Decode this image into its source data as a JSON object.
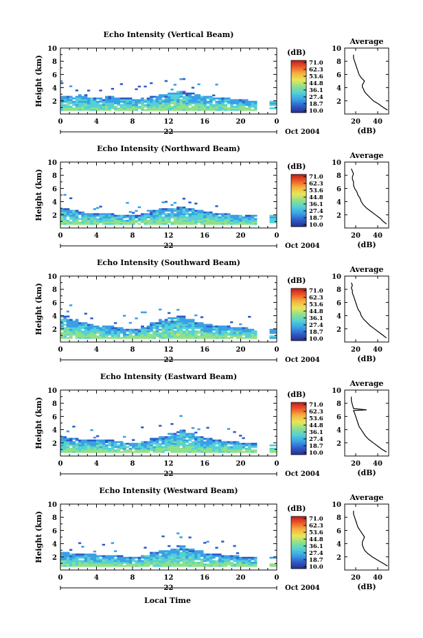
{
  "figure": {
    "xlabel": "Local Time",
    "colorbar_unit": "(dB)",
    "colorbar_ticks": [
      "71.0",
      "62.3",
      "53.6",
      "44.8",
      "36.1",
      "27.4",
      "18.7",
      "10.0"
    ],
    "colormap": [
      "#2a2f8f",
      "#2e5cc8",
      "#3aa0e6",
      "#52d1d6",
      "#8fe08a",
      "#e9e65a",
      "#f6b23c",
      "#ec5a2a",
      "#c21a1a"
    ],
    "date_label": "Oct 2004",
    "day_label": "22",
    "profile_title": "Average",
    "profile_xlabel": "(dB)"
  },
  "chart_data": [
    {
      "type": "heatmap",
      "title": "Echo Intensity (Vertical Beam)",
      "ylabel": "Height (km)",
      "xlim": [
        0,
        24
      ],
      "ylim": [
        0,
        10
      ],
      "xticks": [
        "0",
        "4",
        "8",
        "12",
        "16",
        "20",
        "0"
      ],
      "yticks": [
        "2",
        "4",
        "6",
        "8",
        "10"
      ],
      "echo_top_km": [
        2.7,
        2.6,
        2.8,
        2.5,
        2.4,
        2.6,
        2.5,
        2.3,
        2.2,
        2.4,
        2.6,
        2.9,
        3.2,
        3.5,
        3.1,
        2.9,
        2.6,
        2.4,
        2.3,
        2.2,
        2.1,
        2.0
      ],
      "profile": {
        "xlim": [
          10,
          50
        ],
        "xticks": [
          "20",
          "40"
        ],
        "yticks": [
          "2",
          "4",
          "6",
          "8",
          "10"
        ],
        "x": [
          49,
          45,
          41,
          36,
          33,
          30,
          28,
          27,
          26,
          26,
          27,
          28,
          25,
          23,
          22,
          21,
          20,
          19,
          18,
          18
        ],
        "y": [
          0.6,
          1.0,
          1.5,
          2.0,
          2.5,
          3.0,
          3.4,
          3.8,
          4.1,
          4.4,
          4.7,
          5.0,
          5.5,
          6.0,
          6.5,
          7.0,
          7.5,
          8.0,
          8.5,
          9.0
        ]
      }
    },
    {
      "type": "heatmap",
      "title": "Echo Intensity (Northward Beam)",
      "ylabel": "Height (km)",
      "xlim": [
        0,
        24
      ],
      "ylim": [
        0,
        10
      ],
      "xticks": [
        "0",
        "4",
        "8",
        "12",
        "16",
        "20",
        "0"
      ],
      "yticks": [
        "2",
        "4",
        "6",
        "8",
        "10"
      ],
      "echo_top_km": [
        2.9,
        2.7,
        2.5,
        2.2,
        2.1,
        2.2,
        2.0,
        1.8,
        1.8,
        2.1,
        2.6,
        2.9,
        3.0,
        3.1,
        2.9,
        2.7,
        2.3,
        2.2,
        2.1,
        2.0,
        1.9,
        1.9
      ],
      "profile": {
        "xlim": [
          10,
          50
        ],
        "xticks": [
          "20",
          "40"
        ],
        "yticks": [
          "2",
          "4",
          "6",
          "8",
          "10"
        ],
        "x": [
          48,
          45,
          42,
          38,
          34,
          30,
          27,
          25,
          24,
          22,
          21,
          19,
          18,
          18,
          17,
          17,
          18,
          17,
          16
        ],
        "y": [
          0.6,
          1.0,
          1.5,
          2.0,
          2.5,
          3.0,
          3.5,
          4.0,
          4.5,
          5.0,
          5.5,
          6.0,
          6.5,
          7.0,
          7.4,
          7.8,
          8.2,
          8.6,
          9.0
        ]
      }
    },
    {
      "type": "heatmap",
      "title": "Echo Intensity (Southward Beam)",
      "ylabel": "Height (km)",
      "xlim": [
        0,
        24
      ],
      "ylim": [
        0,
        10
      ],
      "xticks": [
        "0",
        "4",
        "8",
        "12",
        "16",
        "20",
        "0"
      ],
      "yticks": [
        "2",
        "4",
        "6",
        "8",
        "10"
      ],
      "echo_top_km": [
        3.8,
        3.4,
        3.0,
        2.7,
        2.5,
        2.4,
        2.2,
        1.9,
        1.9,
        2.3,
        2.9,
        3.3,
        3.6,
        3.9,
        3.3,
        2.9,
        2.6,
        2.4,
        2.3,
        2.2,
        2.1,
        2.0
      ],
      "profile": {
        "xlim": [
          10,
          50
        ],
        "xticks": [
          "20",
          "40"
        ],
        "yticks": [
          "2",
          "4",
          "6",
          "8",
          "10"
        ],
        "x": [
          48,
          45,
          41,
          37,
          33,
          30,
          27,
          25,
          24,
          22,
          21,
          20,
          19,
          18,
          17,
          17,
          16,
          17,
          16
        ],
        "y": [
          0.6,
          1.0,
          1.5,
          2.0,
          2.5,
          3.0,
          3.5,
          4.0,
          4.5,
          5.0,
          5.5,
          6.0,
          6.5,
          7.0,
          7.4,
          7.8,
          8.2,
          8.6,
          9.0
        ]
      }
    },
    {
      "type": "heatmap",
      "title": "Echo Intensity (Eastward Beam)",
      "ylabel": "Height (km)",
      "xlim": [
        0,
        24
      ],
      "ylim": [
        0,
        10
      ],
      "xticks": [
        "0",
        "4",
        "8",
        "12",
        "16",
        "20",
        "0"
      ],
      "yticks": [
        "2",
        "4",
        "6",
        "8",
        "10"
      ],
      "echo_top_km": [
        2.8,
        2.6,
        2.4,
        2.3,
        2.5,
        2.4,
        2.2,
        2.0,
        1.9,
        2.2,
        2.7,
        3.0,
        3.4,
        3.9,
        3.4,
        3.0,
        2.6,
        2.4,
        2.2,
        2.1,
        2.0,
        1.9
      ],
      "profile": {
        "xlim": [
          10,
          50
        ],
        "xticks": [
          "20",
          "40"
        ],
        "yticks": [
          "2",
          "4",
          "6",
          "8",
          "10"
        ],
        "x": [
          48,
          44,
          40,
          36,
          32,
          29,
          27,
          25,
          23,
          22,
          21,
          20,
          19,
          18,
          30,
          18,
          17,
          16,
          16
        ],
        "y": [
          0.6,
          1.0,
          1.5,
          2.0,
          2.5,
          3.0,
          3.5,
          4.0,
          4.5,
          5.0,
          5.5,
          6.0,
          6.5,
          6.9,
          7.0,
          7.2,
          7.8,
          8.4,
          9.0
        ]
      }
    },
    {
      "type": "heatmap",
      "title": "Echo Intensity (Westward Beam)",
      "ylabel": "Height (km)",
      "xlim": [
        0,
        24
      ],
      "ylim": [
        0,
        10
      ],
      "xticks": [
        "0",
        "4",
        "8",
        "12",
        "16",
        "20",
        "0"
      ],
      "yticks": [
        "2",
        "4",
        "6",
        "8",
        "10"
      ],
      "echo_top_km": [
        2.6,
        2.5,
        2.4,
        2.3,
        2.2,
        2.2,
        2.1,
        1.9,
        1.9,
        2.2,
        2.6,
        2.9,
        3.2,
        3.6,
        3.1,
        2.8,
        2.5,
        2.3,
        2.2,
        2.1,
        2.0,
        1.9
      ],
      "profile": {
        "xlim": [
          10,
          50
        ],
        "xticks": [
          "20",
          "40"
        ],
        "yticks": [
          "2",
          "4",
          "6",
          "8",
          "10"
        ],
        "x": [
          49,
          45,
          40,
          35,
          31,
          28,
          27,
          26,
          26,
          27,
          28,
          26,
          24,
          22,
          21,
          20,
          19,
          18,
          18
        ],
        "y": [
          0.6,
          1.0,
          1.5,
          2.0,
          2.5,
          3.0,
          3.4,
          3.8,
          4.2,
          4.6,
          5.0,
          5.5,
          6.0,
          6.5,
          7.0,
          7.5,
          8.0,
          8.5,
          9.0
        ]
      }
    }
  ]
}
